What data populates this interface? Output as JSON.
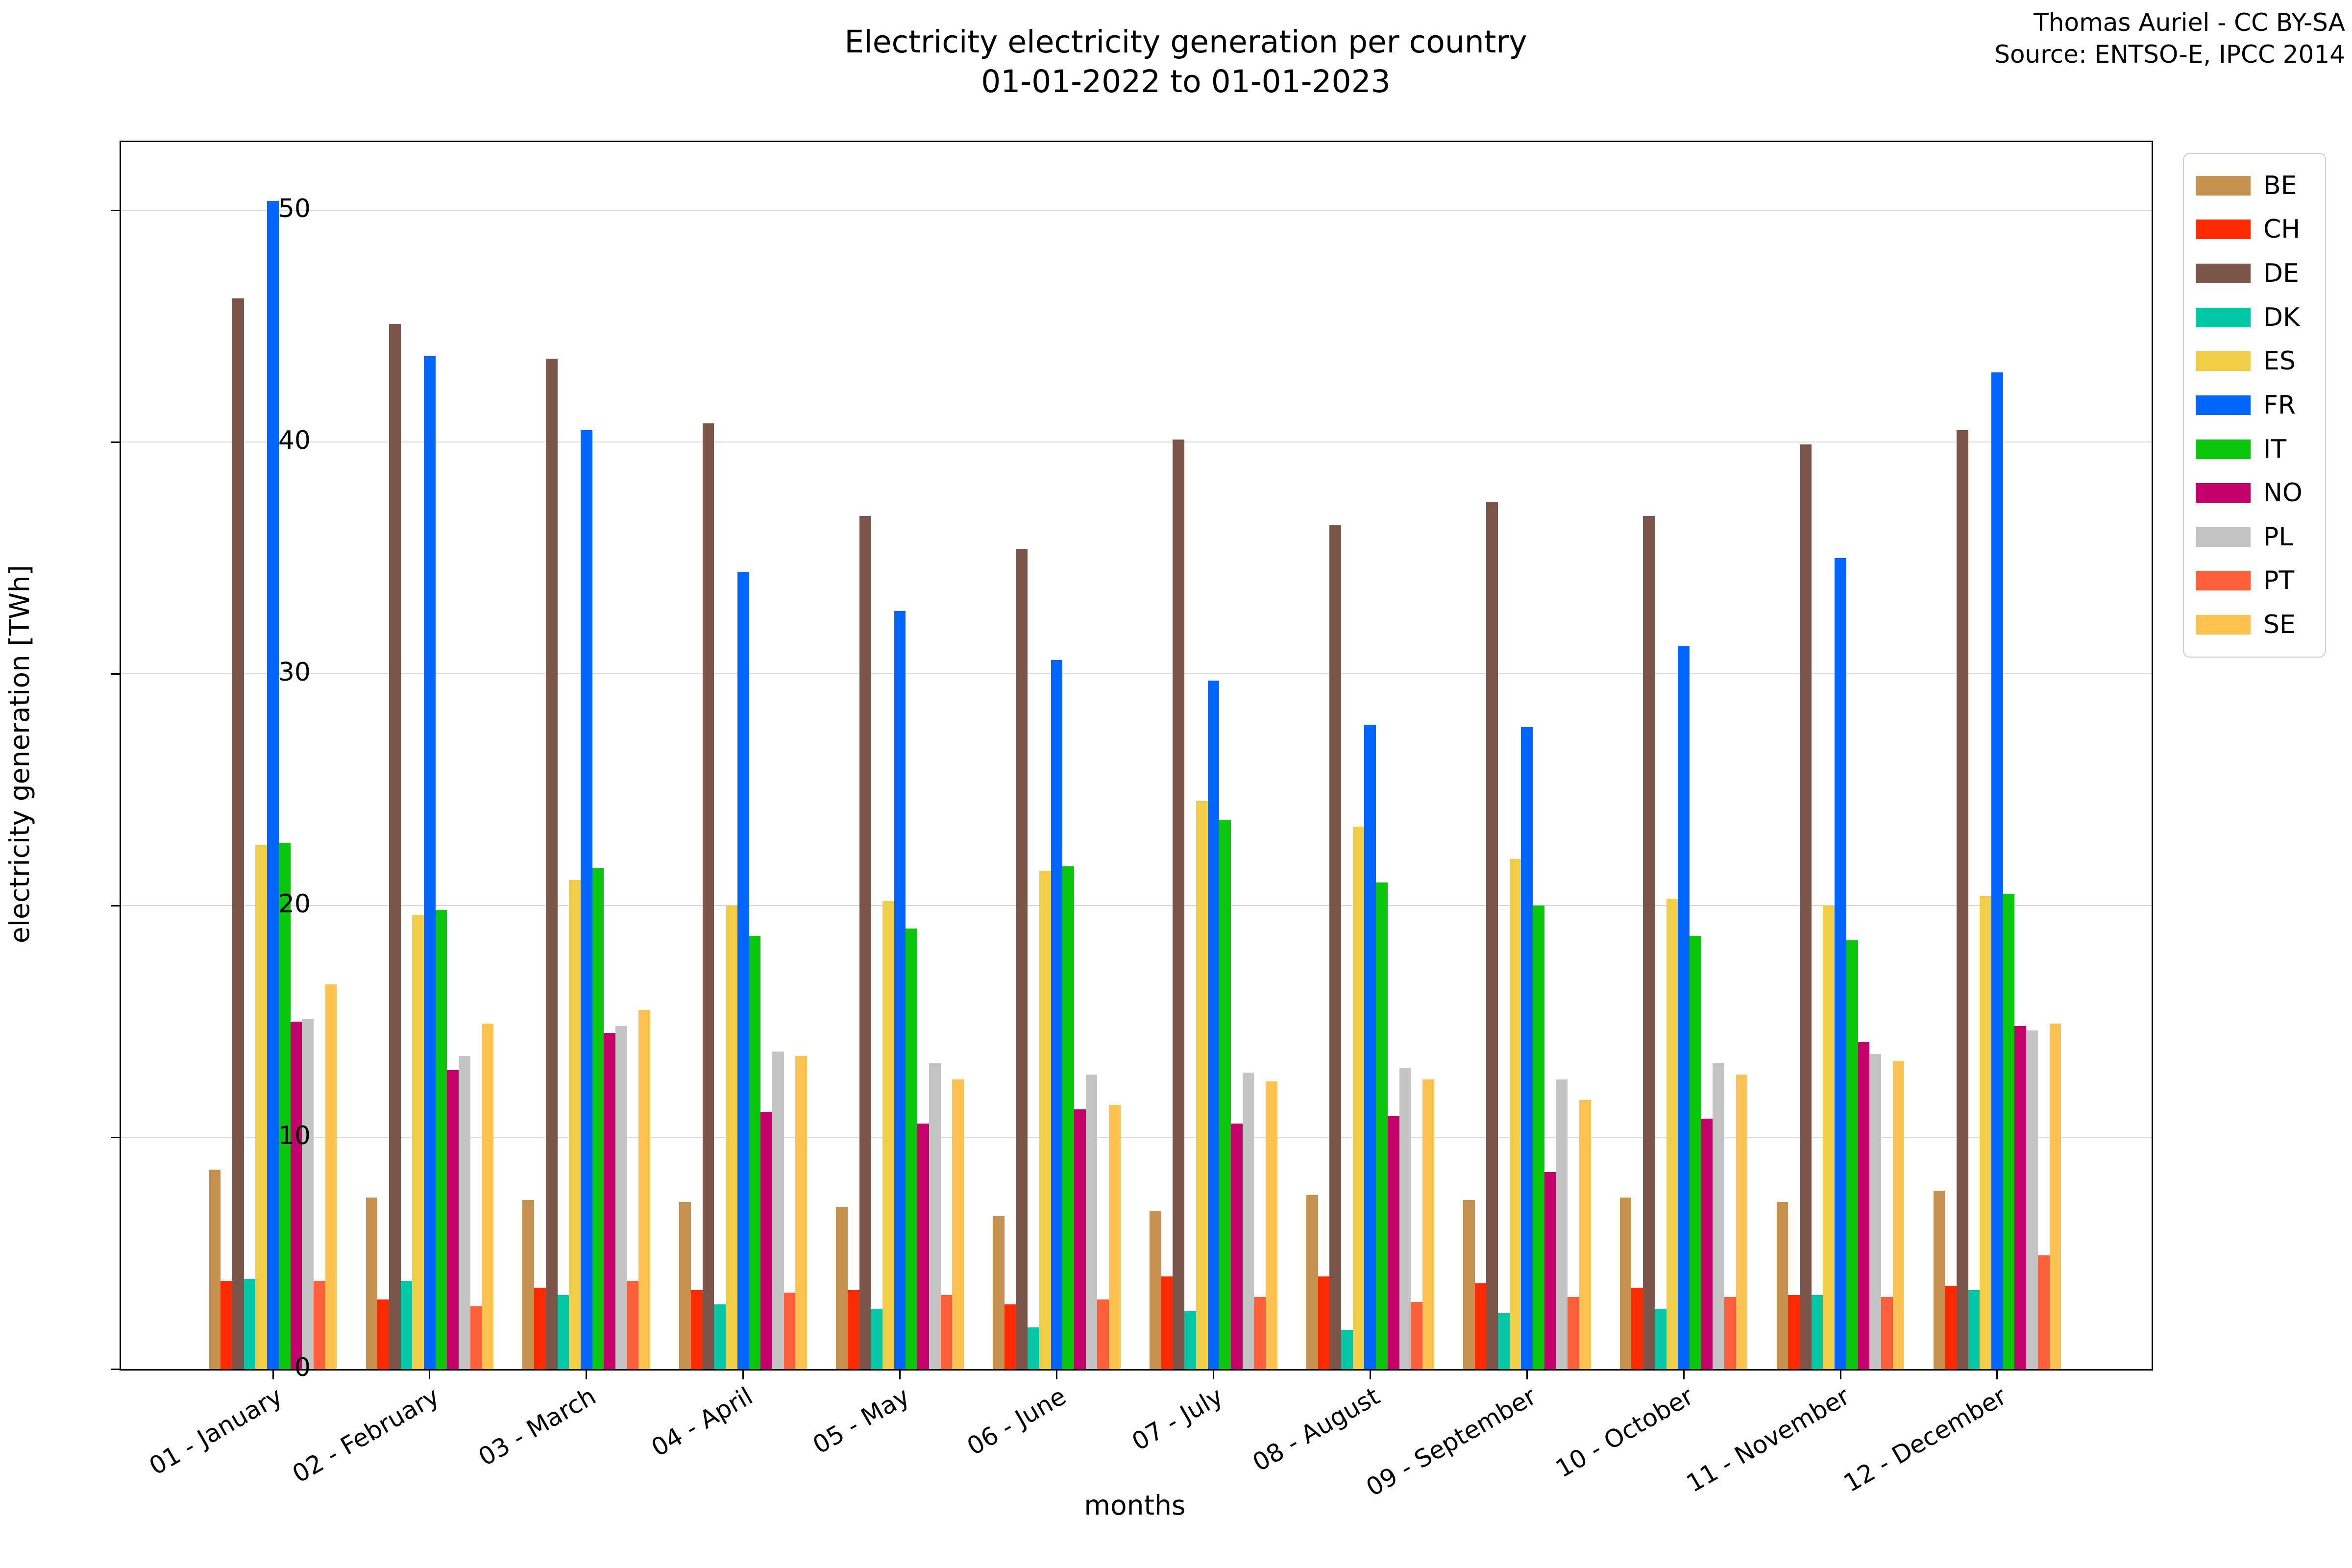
{
  "header": {
    "title_line1": "Electricity electricity generation per country",
    "title_line2": "01-01-2022 to 01-01-2023",
    "credit_line1": "Thomas Auriel - CC BY-SA",
    "credit_line2": "Source: ENTSO-E, IPCC 2014"
  },
  "chart_data": {
    "type": "bar",
    "title": "Electricity electricity generation per country 01-01-2022 to 01-01-2023",
    "xlabel": "months",
    "ylabel": "electricity generation [TWh]",
    "ylim": [
      0,
      52.9
    ],
    "yticks": [
      0,
      10,
      20,
      30,
      40,
      50
    ],
    "grid": true,
    "legend_position": "upper right",
    "categories": [
      "01 - January",
      "02 - February",
      "03 - March",
      "04 - April",
      "05 - May",
      "06 - June",
      "07 - July",
      "08 - August",
      "09 - September",
      "10 - October",
      "11 - November",
      "12 - December"
    ],
    "series": [
      {
        "name": "BE",
        "color": "#C6914F",
        "values": [
          8.6,
          7.4,
          7.3,
          7.2,
          7.0,
          6.6,
          6.8,
          7.5,
          7.3,
          7.4,
          7.2,
          7.7
        ]
      },
      {
        "name": "CH",
        "color": "#FF2B00",
        "values": [
          3.8,
          3.0,
          3.5,
          3.4,
          3.4,
          2.8,
          4.0,
          4.0,
          3.7,
          3.5,
          3.2,
          3.6
        ]
      },
      {
        "name": "DE",
        "color": "#7B544A",
        "values": [
          46.2,
          45.1,
          43.6,
          40.8,
          36.8,
          35.4,
          40.1,
          36.4,
          37.4,
          36.8,
          39.9,
          40.5
        ]
      },
      {
        "name": "DK",
        "color": "#00C7A5",
        "values": [
          3.9,
          3.8,
          3.2,
          2.8,
          2.6,
          1.8,
          2.5,
          1.7,
          2.4,
          2.6,
          3.2,
          3.4
        ]
      },
      {
        "name": "ES",
        "color": "#F1CE46",
        "values": [
          22.6,
          19.6,
          21.1,
          20.0,
          20.2,
          21.5,
          24.5,
          23.4,
          22.0,
          20.3,
          20.0,
          20.4
        ]
      },
      {
        "name": "FR",
        "color": "#0066FF",
        "values": [
          50.4,
          43.7,
          40.5,
          34.4,
          32.7,
          30.6,
          29.7,
          27.8,
          27.7,
          31.2,
          35.0,
          43.0
        ]
      },
      {
        "name": "IT",
        "color": "#0BC70B",
        "values": [
          22.7,
          19.8,
          21.6,
          18.7,
          19.0,
          21.7,
          23.7,
          21.0,
          20.0,
          18.7,
          18.5,
          20.5
        ]
      },
      {
        "name": "NO",
        "color": "#C4006A",
        "values": [
          15.0,
          12.9,
          14.5,
          11.1,
          10.6,
          11.2,
          10.6,
          10.9,
          8.5,
          10.8,
          14.1,
          14.8
        ]
      },
      {
        "name": "PL",
        "color": "#C4C4C4",
        "values": [
          15.1,
          13.5,
          14.8,
          13.7,
          13.2,
          12.7,
          12.8,
          13.0,
          12.5,
          13.2,
          13.6,
          14.6
        ]
      },
      {
        "name": "PT",
        "color": "#FF5E3A",
        "values": [
          3.8,
          2.7,
          3.8,
          3.3,
          3.2,
          3.0,
          3.1,
          2.9,
          3.1,
          3.1,
          3.1,
          4.9
        ]
      },
      {
        "name": "SE",
        "color": "#FFC14F",
        "values": [
          16.6,
          14.9,
          15.5,
          13.5,
          12.5,
          11.4,
          12.4,
          12.5,
          11.6,
          12.7,
          13.3,
          14.9
        ]
      }
    ]
  }
}
